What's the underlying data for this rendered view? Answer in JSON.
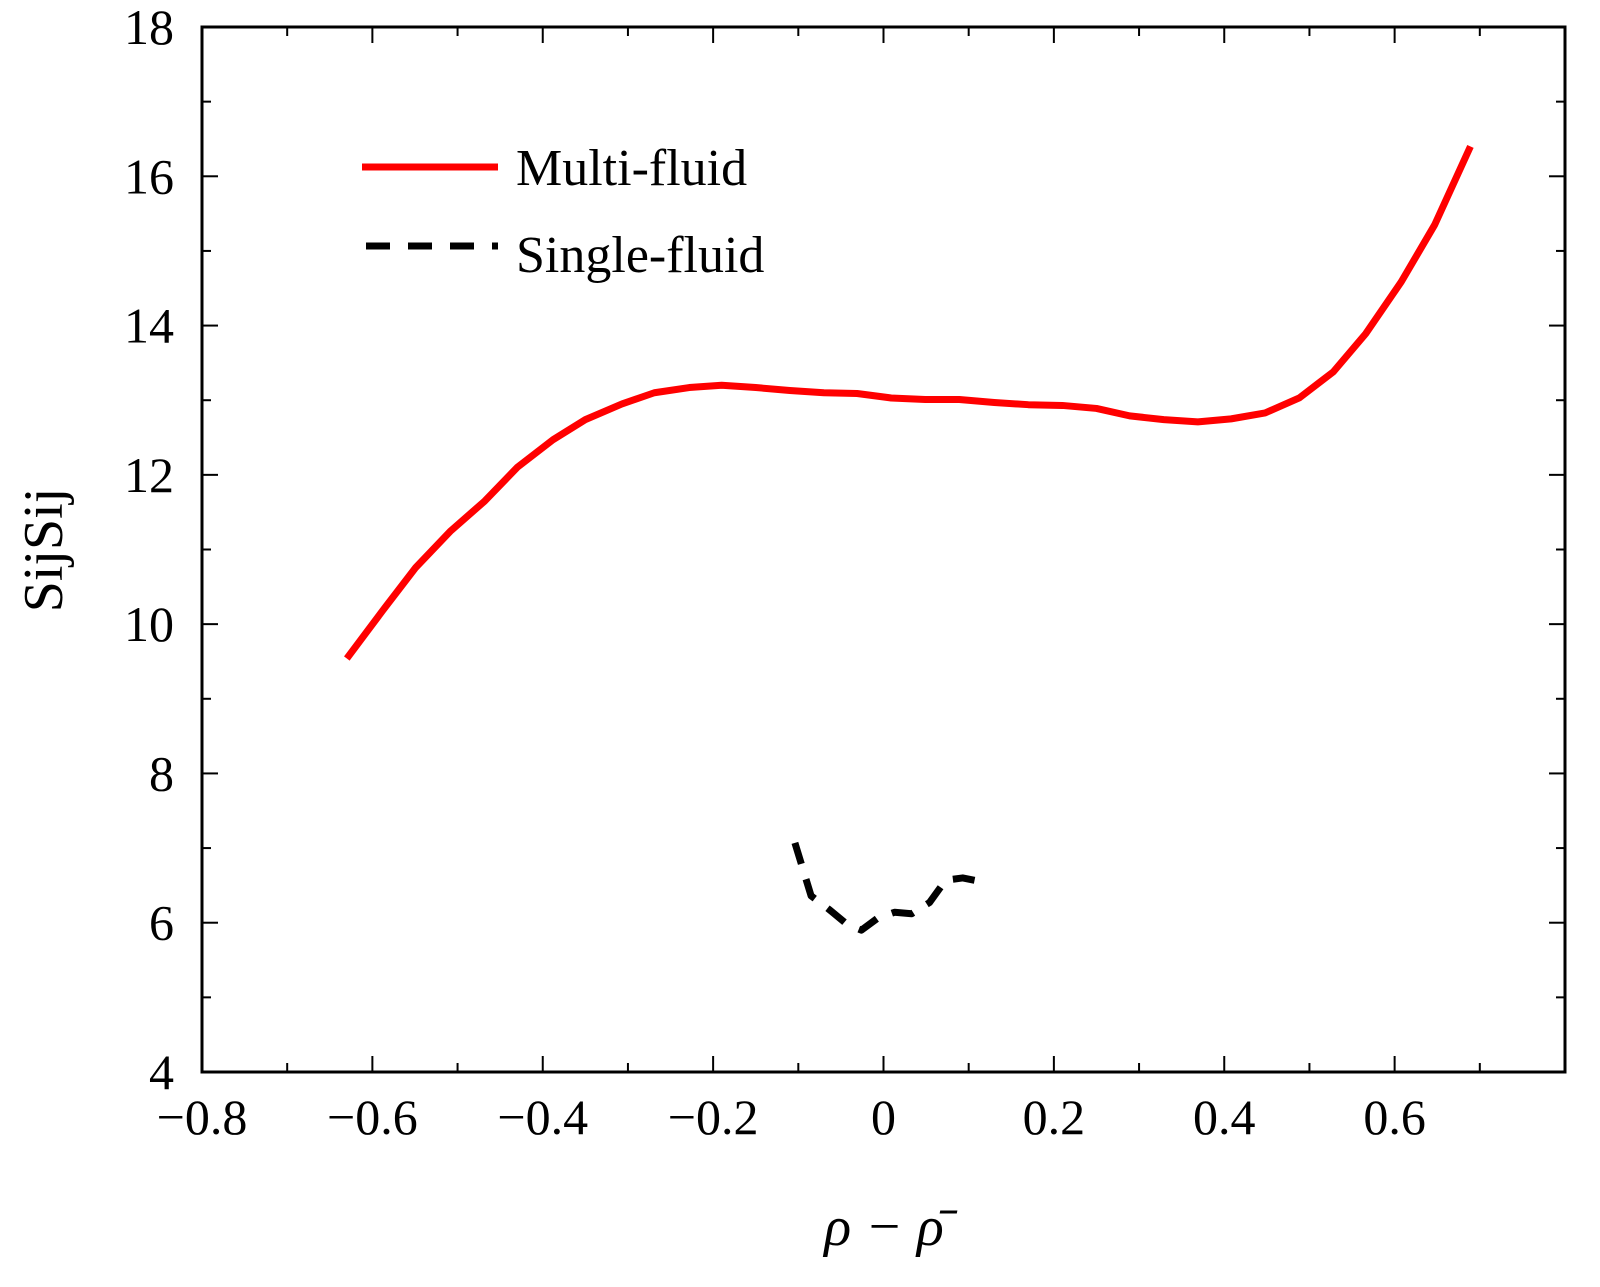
{
  "chart_data": {
    "type": "line",
    "xlabel": "ρ − ρ̄",
    "ylabel": "SijSij",
    "xlim": [
      -0.8,
      0.8
    ],
    "ylim": [
      4,
      18
    ],
    "x_ticks": [
      -0.8,
      -0.6,
      -0.4,
      -0.2,
      0,
      0.2,
      0.4,
      0.6
    ],
    "x_tick_labels": [
      "−0.8",
      "−0.6",
      "−0.4",
      "−0.2",
      "0",
      "0.2",
      "0.4",
      "0.6"
    ],
    "y_ticks": [
      4,
      6,
      8,
      10,
      12,
      14,
      16,
      18
    ],
    "y_tick_labels": [
      "4",
      "6",
      "8",
      "10",
      "12",
      "14",
      "16",
      "18"
    ],
    "grid": false,
    "legend_position": "top-left",
    "series": [
      {
        "name": "Multi-fluid",
        "color": "#ff0000",
        "style": "solid",
        "x": [
          -0.63,
          -0.588,
          -0.549,
          -0.508,
          -0.468,
          -0.43,
          -0.388,
          -0.35,
          -0.307,
          -0.269,
          -0.228,
          -0.19,
          -0.15,
          -0.11,
          -0.07,
          -0.031,
          0.009,
          0.049,
          0.089,
          0.13,
          0.17,
          0.21,
          0.25,
          0.289,
          0.329,
          0.369,
          0.408,
          0.448,
          0.488,
          0.528,
          0.566,
          0.608,
          0.647,
          0.689
        ],
        "y": [
          9.54,
          10.18,
          10.76,
          11.25,
          11.65,
          12.1,
          12.47,
          12.74,
          12.95,
          13.1,
          13.17,
          13.2,
          13.17,
          13.13,
          13.1,
          13.09,
          13.03,
          13.01,
          13.01,
          12.97,
          12.94,
          12.93,
          12.89,
          12.79,
          12.74,
          12.71,
          12.75,
          12.83,
          13.03,
          13.38,
          13.89,
          14.59,
          15.35,
          16.4
        ]
      },
      {
        "name": "Single-fluid",
        "color": "#000000",
        "style": "dashed",
        "x": [
          -0.104,
          -0.085,
          -0.063,
          -0.043,
          -0.026,
          -0.007,
          0.013,
          0.033,
          0.054,
          0.073,
          0.093,
          0.115
        ],
        "y": [
          7.07,
          6.36,
          6.17,
          5.98,
          5.9,
          6.06,
          6.14,
          6.12,
          6.27,
          6.57,
          6.6,
          6.55
        ]
      }
    ]
  }
}
